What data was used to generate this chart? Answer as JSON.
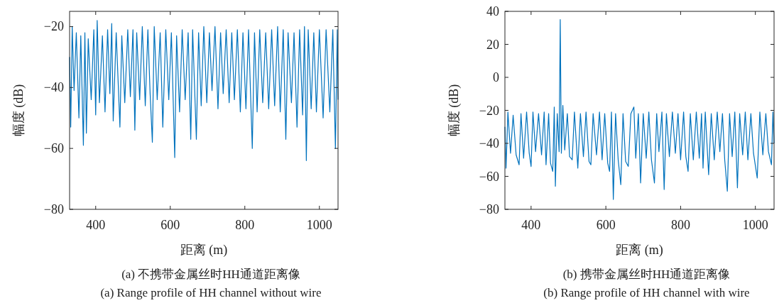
{
  "chart_data": [
    {
      "type": "line",
      "title": "(a) 不携带金属丝时HH通道距离像",
      "subtitle": "(a) Range profile of HH channel without wire",
      "xlabel": "距离 (m)",
      "ylabel": "幅度 (dB)",
      "color": "#0072bd",
      "xlim": [
        330,
        1050
      ],
      "ylim": [
        -80,
        -15
      ],
      "xticks": [
        400,
        600,
        800,
        1000
      ],
      "yticks": [
        -80,
        -60,
        -40,
        -20
      ],
      "x": [
        330,
        333,
        337,
        342,
        348,
        355,
        360,
        367,
        371,
        375,
        380,
        388,
        395,
        400,
        404,
        410,
        418,
        425,
        432,
        438,
        443,
        447,
        455,
        465,
        470,
        478,
        486,
        493,
        500,
        505,
        510,
        518,
        525,
        533,
        540,
        546,
        552,
        557,
        565,
        573,
        580,
        588,
        596,
        603,
        612,
        617,
        625,
        632,
        640,
        648,
        655,
        660,
        670,
        676,
        683,
        690,
        698,
        705,
        712,
        720,
        728,
        735,
        742,
        750,
        758,
        765,
        772,
        780,
        788,
        795,
        803,
        810,
        820,
        826,
        833,
        840,
        848,
        856,
        864,
        872,
        880,
        888,
        895,
        903,
        910,
        916,
        925,
        932,
        940,
        947,
        955,
        960,
        965,
        970,
        978,
        985,
        992,
        1000,
        1010,
        1018,
        1028,
        1036,
        1043,
        1048,
        1050
      ],
      "values": [
        -30,
        -53,
        -20,
        -41,
        -22,
        -50,
        -23,
        -59,
        -22,
        -55,
        -24,
        -44,
        -21,
        -49,
        -18,
        -45,
        -23,
        -48,
        -21,
        -42,
        -19,
        -51,
        -22,
        -53,
        -23,
        -45,
        -21,
        -43,
        -21,
        -54,
        -22,
        -44,
        -20,
        -46,
        -21,
        -42,
        -58,
        -20,
        -44,
        -22,
        -53,
        -21,
        -44,
        -22,
        -63,
        -23,
        -48,
        -21,
        -44,
        -22,
        -57,
        -21,
        -57,
        -22,
        -46,
        -20,
        -45,
        -22,
        -41,
        -20,
        -47,
        -22,
        -42,
        -21,
        -45,
        -22,
        -44,
        -21,
        -48,
        -22,
        -47,
        -21,
        -60,
        -22,
        -48,
        -21,
        -45,
        -22,
        -47,
        -21,
        -46,
        -20,
        -48,
        -21,
        -57,
        -22,
        -45,
        -22,
        -53,
        -21,
        -49,
        -20,
        -64,
        -21,
        -47,
        -22,
        -48,
        -21,
        -50,
        -21,
        -48,
        -21,
        -60,
        -21,
        -44
      ]
    },
    {
      "type": "line",
      "title": "(b) 携带金属丝时HH通道距离像",
      "subtitle": "(b) Range profile of HH channel with wire",
      "xlabel": "距离 (m)",
      "ylabel": "幅度 (dB)",
      "color": "#0072bd",
      "xlim": [
        330,
        1050
      ],
      "ylim": [
        -80,
        40
      ],
      "xticks": [
        400,
        600,
        800,
        1000
      ],
      "yticks": [
        -80,
        -60,
        -40,
        -20,
        0,
        20,
        40
      ],
      "x": [
        330,
        333,
        338,
        345,
        352,
        360,
        368,
        373,
        380,
        388,
        395,
        400,
        405,
        412,
        420,
        428,
        435,
        440,
        447,
        452,
        458,
        462,
        465,
        470,
        475,
        478,
        481,
        485,
        490,
        497,
        503,
        510,
        516,
        525,
        532,
        540,
        547,
        555,
        560,
        566,
        575,
        583,
        590,
        597,
        605,
        610,
        615,
        620,
        626,
        633,
        640,
        646,
        653,
        660,
        667,
        675,
        680,
        687,
        693,
        700,
        708,
        715,
        722,
        730,
        736,
        742,
        750,
        756,
        762,
        770,
        778,
        786,
        793,
        800,
        808,
        814,
        820,
        826,
        834,
        842,
        850,
        856,
        860,
        866,
        875,
        882,
        890,
        898,
        905,
        912,
        918,
        925,
        931,
        938,
        945,
        952,
        958,
        966,
        973,
        980,
        988,
        995,
        1005,
        1012,
        1020,
        1028,
        1035,
        1043,
        1047,
        1050
      ],
      "values": [
        -30,
        -55,
        -21,
        -46,
        -23,
        -47,
        -53,
        -22,
        -49,
        -21,
        -46,
        -54,
        -21,
        -45,
        -22,
        -47,
        -21,
        -53,
        -22,
        -52,
        -57,
        -18,
        -66,
        -22,
        -45,
        35,
        -46,
        -17,
        -44,
        -22,
        -48,
        -50,
        -21,
        -55,
        -22,
        -48,
        -21,
        -51,
        -53,
        -22,
        -47,
        -21,
        -50,
        -22,
        -52,
        -57,
        -21,
        -74,
        -22,
        -50,
        -65,
        -22,
        -51,
        -54,
        -22,
        -18,
        -49,
        -22,
        -64,
        -22,
        -49,
        -21,
        -50,
        -64,
        -22,
        -45,
        -21,
        -68,
        -22,
        -48,
        -21,
        -46,
        -22,
        -50,
        -21,
        -48,
        -57,
        -22,
        -50,
        -21,
        -49,
        -22,
        -55,
        -21,
        -59,
        -22,
        -50,
        -21,
        -45,
        -22,
        -50,
        -69,
        -22,
        -48,
        -21,
        -67,
        -22,
        -47,
        -21,
        -50,
        -22,
        -46,
        -61,
        -21,
        -47,
        -22,
        -45,
        -53,
        -21,
        -40
      ]
    }
  ]
}
